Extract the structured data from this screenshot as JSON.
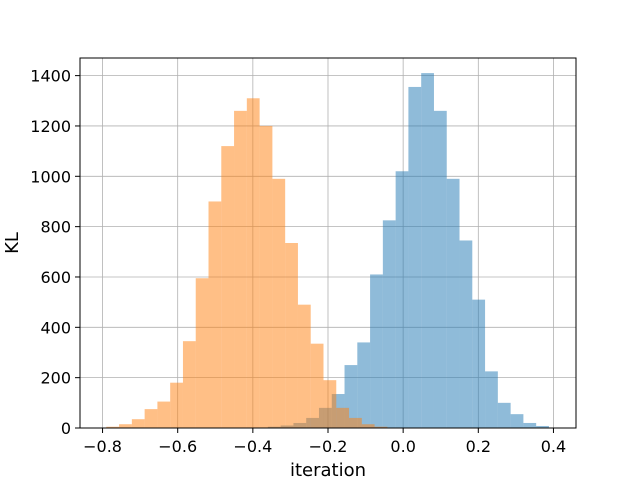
{
  "chart_data": {
    "type": "histogram",
    "xlabel": "iteration",
    "ylabel": "KL",
    "xlim": [
      -0.86,
      0.46
    ],
    "ylim": [
      0,
      1470
    ],
    "xticks": [
      -0.8,
      -0.6,
      -0.4,
      -0.2,
      0.0,
      0.2,
      0.4
    ],
    "xtick_labels": [
      "−0.8",
      "−0.6",
      "−0.4",
      "−0.2",
      "0.0",
      "0.2",
      "0.4"
    ],
    "yticks": [
      0,
      200,
      400,
      600,
      800,
      1000,
      1200,
      1400
    ],
    "ytick_labels": [
      "0",
      "200",
      "400",
      "600",
      "800",
      "1000",
      "1200",
      "1400"
    ],
    "grid": true,
    "series": [
      {
        "color": "#1f77b4",
        "alpha": 0.5,
        "bin_start": -0.36,
        "bin_width": 0.034,
        "values": [
          5,
          10,
          20,
          40,
          80,
          135,
          250,
          340,
          610,
          825,
          1020,
          1355,
          1410,
          1260,
          990,
          745,
          510,
          225,
          100,
          55,
          20,
          8
        ]
      },
      {
        "color": "#ff7f0e",
        "alpha": 0.5,
        "bin_start": -0.79,
        "bin_width": 0.034,
        "values": [
          5,
          15,
          35,
          75,
          105,
          180,
          345,
          595,
          900,
          1120,
          1260,
          1310,
          1200,
          990,
          735,
          490,
          335,
          190,
          80,
          40,
          15,
          5
        ]
      }
    ]
  }
}
